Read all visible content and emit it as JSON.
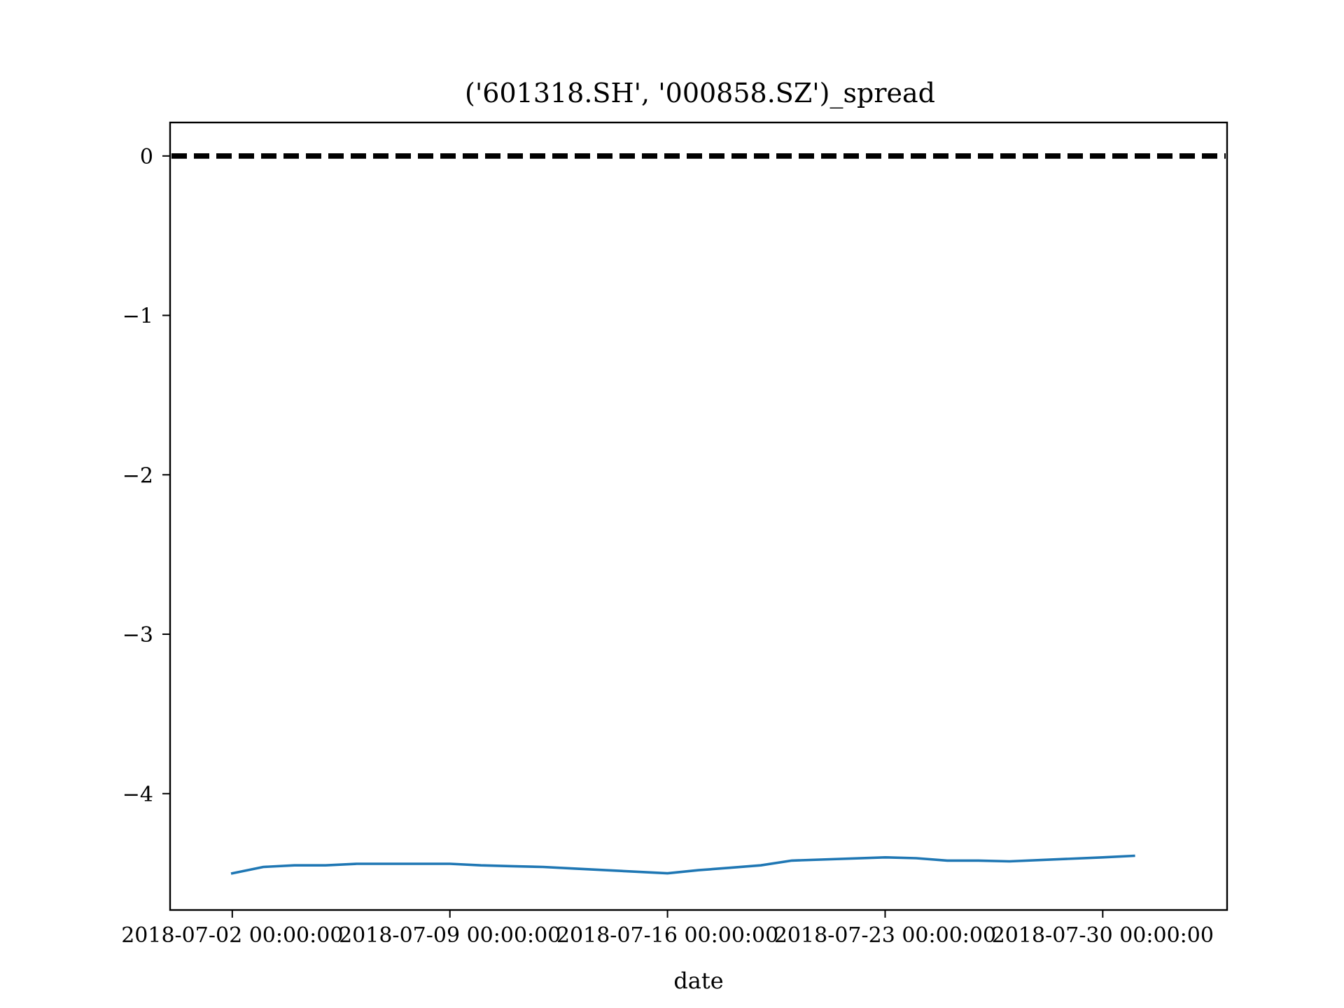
{
  "chart_data": {
    "type": "line",
    "title": "('601318.SH', '000858.SZ')_spread",
    "xlabel": "date",
    "ylabel": "",
    "x_tick_labels": [
      "2018-07-02 00:00:00",
      "2018-07-09 00:00:00",
      "2018-07-16 00:00:00",
      "2018-07-23 00:00:00",
      "2018-07-30 00:00:00"
    ],
    "x_ticks": [
      "2018-07-02",
      "2018-07-09",
      "2018-07-16",
      "2018-07-23",
      "2018-07-30"
    ],
    "y_tick_labels": [
      "0",
      "−1",
      "−2",
      "−3",
      "−4"
    ],
    "y_ticks": [
      0,
      -1,
      -2,
      -3,
      -4
    ],
    "xlim": [
      "2018-06-30",
      "2018-08-03"
    ],
    "ylim": [
      -4.73,
      0.21
    ],
    "grid": false,
    "series": [
      {
        "color": "#1f77b4",
        "style": "solid",
        "x": [
          "2018-07-02",
          "2018-07-03",
          "2018-07-04",
          "2018-07-05",
          "2018-07-06",
          "2018-07-09",
          "2018-07-10",
          "2018-07-11",
          "2018-07-12",
          "2018-07-13",
          "2018-07-16",
          "2018-07-17",
          "2018-07-18",
          "2018-07-19",
          "2018-07-20",
          "2018-07-23",
          "2018-07-24",
          "2018-07-25",
          "2018-07-26",
          "2018-07-27",
          "2018-07-30",
          "2018-07-31"
        ],
        "values": [
          -4.5,
          -4.46,
          -4.45,
          -4.45,
          -4.44,
          -4.44,
          -4.45,
          -4.455,
          -4.46,
          -4.47,
          -4.5,
          -4.48,
          -4.465,
          -4.45,
          -4.42,
          -4.4,
          -4.405,
          -4.42,
          -4.42,
          -4.425,
          -4.4,
          -4.39
        ]
      }
    ],
    "hlines": [
      {
        "y": 0.0,
        "color": "#000000",
        "style": "dashed"
      },
      {
        "y": 0.01,
        "color": "#000000",
        "style": "dashed"
      },
      {
        "y": -0.01,
        "color": "#000000",
        "style": "dashed"
      }
    ]
  }
}
